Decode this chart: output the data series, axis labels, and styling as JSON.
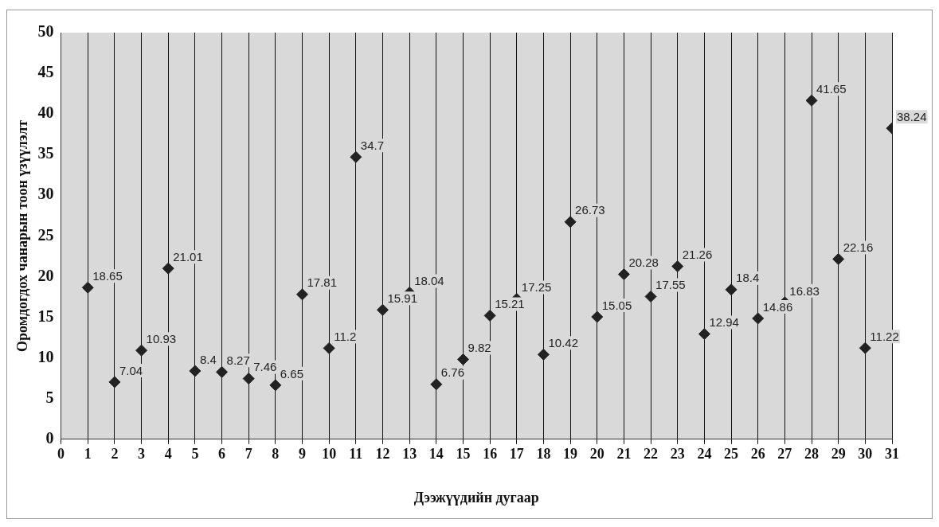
{
  "chart_data": {
    "type": "scatter",
    "xlabel": "Дээжүүдийн дугаар",
    "ylabel": "Оромдогдох чанарын тоон үзүүлэлт",
    "x": [
      1,
      2,
      3,
      4,
      5,
      6,
      7,
      8,
      9,
      10,
      11,
      12,
      13,
      14,
      15,
      16,
      17,
      18,
      19,
      20,
      21,
      22,
      23,
      24,
      25,
      26,
      27,
      28,
      29,
      30,
      31
    ],
    "values": [
      18.65,
      7.04,
      10.93,
      21.01,
      8.4,
      8.27,
      7.46,
      6.65,
      17.81,
      11.2,
      34.7,
      15.91,
      18.04,
      6.76,
      9.82,
      15.21,
      17.25,
      10.42,
      26.73,
      15.05,
      20.28,
      17.55,
      21.26,
      12.94,
      18.4,
      14.86,
      16.83,
      41.65,
      22.16,
      11.22,
      38.24
    ],
    "color": "#222222",
    "marker": "diamond",
    "data_labels": true,
    "grid": "x",
    "xlim": [
      0,
      31
    ],
    "xticks": [
      0,
      1,
      2,
      3,
      4,
      5,
      6,
      7,
      8,
      9,
      10,
      11,
      12,
      13,
      14,
      15,
      16,
      17,
      18,
      19,
      20,
      21,
      22,
      23,
      24,
      25,
      26,
      27,
      28,
      29,
      30,
      31
    ],
    "ylim": [
      0,
      50
    ],
    "yticks": [
      0,
      5,
      10,
      15,
      20,
      25,
      30,
      35,
      40,
      45,
      50
    ],
    "legend": false
  }
}
